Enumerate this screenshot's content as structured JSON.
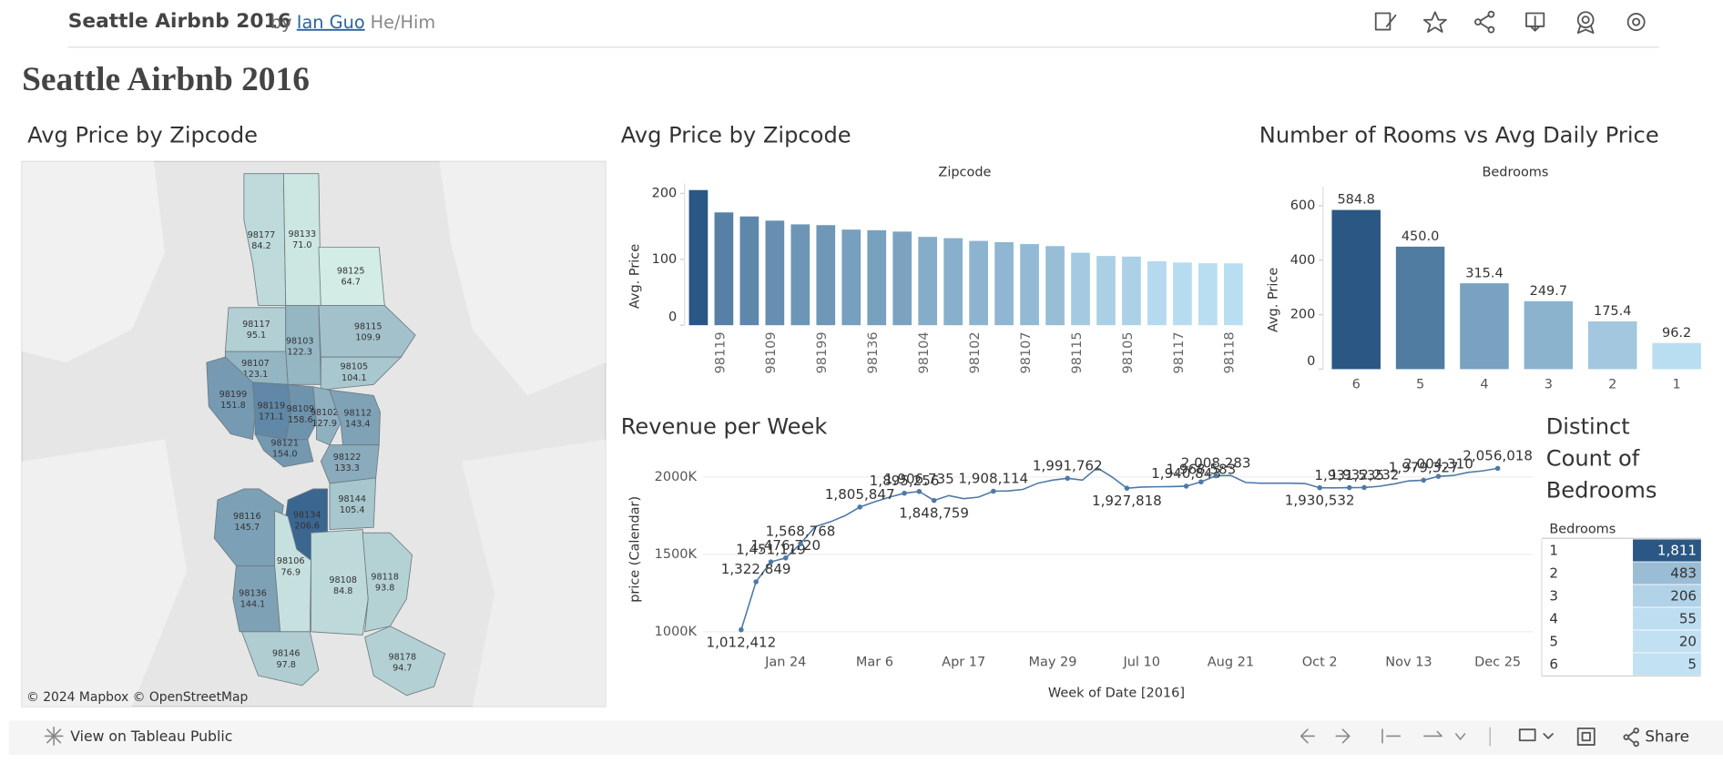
{
  "header": {
    "title": "Seattle Airbnb 2016",
    "by": "by",
    "author": "Ian Guo",
    "pronouns": "He/Him"
  },
  "dashboard_title": "Seattle Airbnb 2016",
  "chart_data": [
    {
      "type": "map",
      "title": "Avg Price by Zipcode",
      "attribution": "© 2024 Mapbox  © OpenStreetMap",
      "categories": [
        "98177",
        "98133",
        "98125",
        "98117",
        "98103",
        "98115",
        "98107",
        "98105",
        "98199",
        "98119",
        "98109",
        "98102",
        "98112",
        "98121",
        "98122",
        "98144",
        "98134",
        "98116",
        "98136",
        "98106",
        "98108",
        "98118",
        "98146",
        "98178"
      ],
      "values": [
        84.2,
        71.0,
        64.7,
        95.1,
        122.3,
        109.9,
        123.1,
        104.1,
        151.8,
        171.1,
        158.6,
        127.9,
        143.4,
        154.0,
        133.3,
        105.4,
        206.6,
        145.7,
        144.1,
        76.9,
        84.8,
        93.8,
        97.8,
        94.7
      ],
      "value_labels": [
        "84.2",
        "71.0",
        "64.7",
        "95.1",
        "122.3",
        "109.9",
        "123.1",
        "104.1",
        "151.8",
        "171.1",
        "158.6",
        "127.9",
        "143.4",
        "154.0",
        "133.3",
        "105.4",
        "206.6",
        "145.7",
        "144.1",
        "76.9",
        "84.8",
        "93.8",
        "97.8",
        "94.7"
      ],
      "color_range": [
        "#d3ece6",
        "#3b6690"
      ]
    },
    {
      "type": "bar",
      "title": "Avg Price by Zipcode",
      "column_header": "Zipcode",
      "y_label": "Avg. Price",
      "categories": [
        null,
        "98119",
        null,
        "98109",
        null,
        "98199",
        null,
        "98136",
        null,
        "98104",
        null,
        "98102",
        null,
        "98107",
        null,
        "98115",
        null,
        "98105",
        null,
        "98117",
        null,
        "98118"
      ],
      "values": [
        205,
        171.1,
        165,
        158.6,
        153,
        151.8,
        145,
        144.1,
        142,
        134,
        132,
        127.9,
        126,
        123.1,
        120,
        109.9,
        105,
        104.1,
        97,
        95.1,
        94,
        93.8
      ],
      "ylim": [
        0,
        215
      ],
      "yticks": [
        0,
        100,
        200
      ],
      "color_range": [
        "#b9ddf1",
        "#2a5783"
      ]
    },
    {
      "type": "bar",
      "title": "Number of Rooms vs Avg Daily Price",
      "column_header": "Bedrooms",
      "y_label": "Avg. Price",
      "categories": [
        "6",
        "5",
        "4",
        "3",
        "2",
        "1"
      ],
      "values": [
        584.8,
        450.0,
        315.4,
        249.7,
        175.4,
        96.2
      ],
      "value_labels": [
        "584.8",
        "450.0",
        "315.4",
        "249.7",
        "175.4",
        "96.2"
      ],
      "ylim": [
        0,
        670
      ],
      "yticks": [
        0,
        200,
        400,
        600
      ],
      "color_range": [
        "#b9ddf1",
        "#2a5783"
      ]
    },
    {
      "type": "line",
      "title": "Revenue per Week",
      "x_label": "Week of Date [2016]",
      "y_label": "price (Calendar)",
      "categories": [
        null,
        null,
        null,
        "Jan 24",
        null,
        null,
        null,
        null,
        null,
        "Mar 6",
        null,
        null,
        null,
        null,
        null,
        "Apr 17",
        null,
        null,
        null,
        null,
        null,
        "May 29",
        null,
        null,
        null,
        null,
        null,
        "Jul 10",
        null,
        null,
        null,
        null,
        null,
        "Aug 21",
        null,
        null,
        null,
        null,
        null,
        "Oct 2",
        null,
        null,
        null,
        null,
        null,
        "Nov 13",
        null,
        null,
        null,
        null,
        null,
        "Dec 25"
      ],
      "values": [
        1012412,
        1322849,
        1451119,
        1476720,
        1568768,
        1680000,
        1710000,
        1750000,
        1805847,
        1840000,
        1870000,
        1895256,
        1906735,
        1848759,
        1880000,
        1860000,
        1870000,
        1908114,
        1910000,
        1920000,
        1960000,
        1980000,
        1991762,
        1980000,
        2060000,
        2000000,
        1927818,
        1935000,
        1937000,
        1938000,
        1940843,
        1968583,
        2008283,
        2010000,
        1965000,
        1960000,
        1960000,
        1960000,
        1958000,
        1930532,
        1930000,
        1931535,
        1932232,
        1940000,
        1955000,
        1975000,
        1979327,
        2004310,
        2010000,
        2030000,
        2040000,
        2056018
      ],
      "value_labels": [
        "1,012,412",
        "1,322,849",
        "1,451,119",
        "1,476,720",
        "1,568,768",
        null,
        null,
        null,
        "1,805,847",
        null,
        null,
        "1,895,256",
        "1,906,735",
        "1,848,759",
        null,
        null,
        null,
        "1,908,114",
        null,
        null,
        null,
        null,
        "1,991,762",
        null,
        null,
        null,
        "1,927,818",
        null,
        null,
        null,
        "1,940,843",
        "1,968,583",
        "2,008,283",
        null,
        null,
        null,
        null,
        null,
        null,
        "1,930,532",
        null,
        "1,931,535",
        "1,932,232",
        null,
        null,
        null,
        "1,979,327",
        "2,004,310",
        null,
        null,
        null,
        "2,056,018"
      ],
      "ylim": [
        890000,
        2115000
      ],
      "yticks": [
        {
          "value": 1000000,
          "label": "1000K"
        },
        {
          "value": 1500000,
          "label": "1500K"
        },
        {
          "value": 2000000,
          "label": "2000K"
        }
      ],
      "color": "#4e79a7",
      "grid": true
    },
    {
      "type": "highlight-table",
      "title": "Distinct Count of Bedrooms",
      "row_header": "Bedrooms",
      "categories": [
        "1",
        "2",
        "3",
        "4",
        "5",
        "6"
      ],
      "values": [
        1811,
        483,
        206,
        55,
        20,
        5
      ],
      "value_labels": [
        "1,811",
        "483",
        "206",
        "55",
        "20",
        "5"
      ],
      "color_range": [
        "#c2e1f3",
        "#2a5783"
      ]
    }
  ],
  "toolbar": {
    "view": "View on Tableau Public",
    "share": "Share"
  }
}
